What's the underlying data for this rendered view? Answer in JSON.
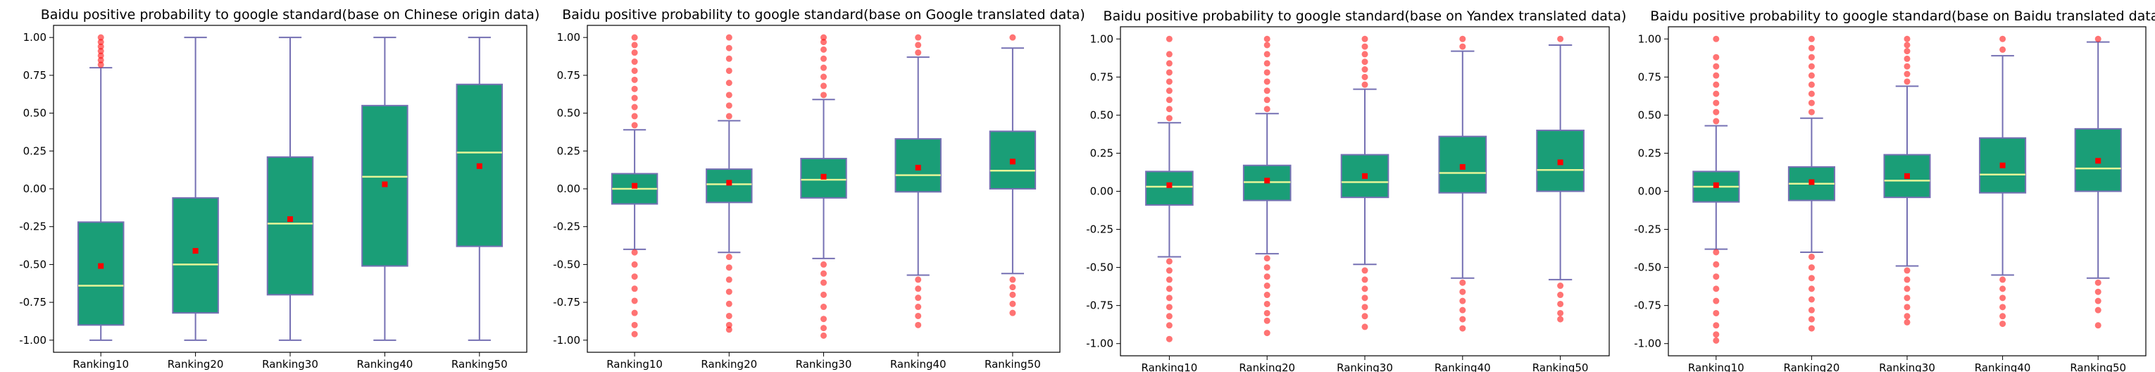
{
  "chart_data": [
    {
      "type": "box",
      "title": "Baidu positive probability to google standard(base on Chinese origin data)",
      "categories": [
        "Ranking10",
        "Ranking20",
        "Ranking30",
        "Ranking40",
        "Ranking50"
      ],
      "ylim": [
        -1.08,
        1.08
      ],
      "yticks": [
        "1.00",
        "0.75",
        "0.50",
        "0.25",
        "0.00",
        "-0.25",
        "-0.50",
        "-0.75",
        "-1.00"
      ],
      "ytick_values": [
        1.0,
        0.75,
        0.5,
        0.25,
        0.0,
        -0.25,
        -0.5,
        -0.75,
        -1.0
      ],
      "boxes": [
        {
          "whislo": -1.0,
          "q1": -0.9,
          "med": -0.64,
          "q3": -0.22,
          "whishi": 0.8,
          "mean": -0.51,
          "fliers": [
            0.82,
            0.85,
            0.88,
            0.91,
            0.94,
            0.97,
            1.0
          ]
        },
        {
          "whislo": -1.0,
          "q1": -0.82,
          "med": -0.5,
          "q3": -0.06,
          "whishi": 1.0,
          "mean": -0.41,
          "fliers": []
        },
        {
          "whislo": -1.0,
          "q1": -0.7,
          "med": -0.23,
          "q3": 0.21,
          "whishi": 1.0,
          "mean": -0.2,
          "fliers": []
        },
        {
          "whislo": -1.0,
          "q1": -0.51,
          "med": 0.08,
          "q3": 0.55,
          "whishi": 1.0,
          "mean": 0.03,
          "fliers": []
        },
        {
          "whislo": -1.0,
          "q1": -0.38,
          "med": 0.24,
          "q3": 0.69,
          "whishi": 1.0,
          "mean": 0.15,
          "fliers": []
        }
      ]
    },
    {
      "type": "box",
      "title": "Baidu positive probability to google standard(base on Google translated data)",
      "categories": [
        "Ranking10",
        "Ranking20",
        "Ranking30",
        "Ranking40",
        "Ranking50"
      ],
      "ylim": [
        -1.08,
        1.08
      ],
      "yticks": [
        "1.00",
        "0.75",
        "0.50",
        "0.25",
        "0.00",
        "-0.25",
        "-0.50",
        "-0.75",
        "-1.00"
      ],
      "ytick_values": [
        1.0,
        0.75,
        0.5,
        0.25,
        0.0,
        -0.25,
        -0.5,
        -0.75,
        -1.0
      ],
      "boxes": [
        {
          "whislo": -0.4,
          "q1": -0.1,
          "med": 0.0,
          "q3": 0.1,
          "whishi": 0.39,
          "mean": 0.02,
          "fliers": [
            0.42,
            0.48,
            0.54,
            0.6,
            0.66,
            0.72,
            0.78,
            0.84,
            0.9,
            0.95,
            1.0,
            -0.42,
            -0.5,
            -0.58,
            -0.66,
            -0.74,
            -0.82,
            -0.9,
            -0.96
          ]
        },
        {
          "whislo": -0.42,
          "q1": -0.09,
          "med": 0.03,
          "q3": 0.13,
          "whishi": 0.45,
          "mean": 0.04,
          "fliers": [
            0.48,
            0.55,
            0.62,
            0.7,
            0.78,
            0.86,
            0.93,
            1.0,
            -0.45,
            -0.52,
            -0.6,
            -0.68,
            -0.76,
            -0.84,
            -0.9,
            -0.93
          ]
        },
        {
          "whislo": -0.46,
          "q1": -0.06,
          "med": 0.06,
          "q3": 0.2,
          "whishi": 0.59,
          "mean": 0.08,
          "fliers": [
            0.62,
            0.68,
            0.74,
            0.8,
            0.86,
            0.92,
            0.97,
            1.0,
            -0.5,
            -0.56,
            -0.62,
            -0.7,
            -0.78,
            -0.86,
            -0.92,
            -0.97
          ]
        },
        {
          "whislo": -0.57,
          "q1": -0.02,
          "med": 0.09,
          "q3": 0.33,
          "whishi": 0.87,
          "mean": 0.14,
          "fliers": [
            0.9,
            0.95,
            1.0,
            -0.6,
            -0.66,
            -0.72,
            -0.78,
            -0.84,
            -0.9
          ]
        },
        {
          "whislo": -0.56,
          "q1": 0.0,
          "med": 0.12,
          "q3": 0.38,
          "whishi": 0.93,
          "mean": 0.18,
          "fliers": [
            1.0,
            -0.6,
            -0.65,
            -0.7,
            -0.76,
            -0.82
          ]
        }
      ]
    },
    {
      "type": "box",
      "title": "Baidu positive probability to google standard(base on Yandex translated data)",
      "categories": [
        "Ranking10",
        "Ranking20",
        "Ranking30",
        "Ranking40",
        "Ranking50"
      ],
      "ylim": [
        -1.08,
        1.08
      ],
      "yticks": [
        "1.00",
        "0.75",
        "0.50",
        "0.25",
        "0.00",
        "-0.25",
        "-0.50",
        "-0.75",
        "-1.00"
      ],
      "ytick_values": [
        1.0,
        0.75,
        0.5,
        0.25,
        0.0,
        -0.25,
        -0.5,
        -0.75,
        -1.0
      ],
      "boxes": [
        {
          "whislo": -0.43,
          "q1": -0.09,
          "med": 0.03,
          "q3": 0.13,
          "whishi": 0.45,
          "mean": 0.04,
          "fliers": [
            0.48,
            0.54,
            0.6,
            0.66,
            0.72,
            0.78,
            0.84,
            0.9,
            1.0,
            -0.46,
            -0.52,
            -0.58,
            -0.64,
            -0.7,
            -0.76,
            -0.82,
            -0.88,
            -0.97
          ]
        },
        {
          "whislo": -0.41,
          "q1": -0.06,
          "med": 0.06,
          "q3": 0.17,
          "whishi": 0.51,
          "mean": 0.07,
          "fliers": [
            0.54,
            0.6,
            0.66,
            0.72,
            0.78,
            0.84,
            0.9,
            0.96,
            1.0,
            -0.44,
            -0.5,
            -0.56,
            -0.62,
            -0.68,
            -0.74,
            -0.8,
            -0.85,
            -0.93
          ]
        },
        {
          "whislo": -0.48,
          "q1": -0.04,
          "med": 0.06,
          "q3": 0.24,
          "whishi": 0.67,
          "mean": 0.1,
          "fliers": [
            0.7,
            0.75,
            0.8,
            0.85,
            0.9,
            0.95,
            1.0,
            -0.52,
            -0.58,
            -0.64,
            -0.7,
            -0.76,
            -0.82,
            -0.89
          ]
        },
        {
          "whislo": -0.57,
          "q1": -0.01,
          "med": 0.12,
          "q3": 0.36,
          "whishi": 0.92,
          "mean": 0.16,
          "fliers": [
            0.95,
            1.0,
            -0.6,
            -0.66,
            -0.72,
            -0.78,
            -0.84,
            -0.9
          ]
        },
        {
          "whislo": -0.58,
          "q1": 0.0,
          "med": 0.14,
          "q3": 0.4,
          "whishi": 0.96,
          "mean": 0.19,
          "fliers": [
            1.0,
            -0.62,
            -0.68,
            -0.74,
            -0.8,
            -0.84
          ]
        }
      ]
    },
    {
      "type": "box",
      "title": "Baidu positive probability to google standard(base on Baidu translated data)",
      "categories": [
        "Ranking10",
        "Ranking20",
        "Ranking30",
        "Ranking40",
        "Ranking50"
      ],
      "ylim": [
        -1.08,
        1.08
      ],
      "yticks": [
        "1.00",
        "0.75",
        "0.50",
        "0.25",
        "0.00",
        "-0.25",
        "-0.50",
        "-0.75",
        "-1.00"
      ],
      "ytick_values": [
        1.0,
        0.75,
        0.5,
        0.25,
        0.0,
        -0.25,
        -0.5,
        -0.75,
        -1.0
      ],
      "boxes": [
        {
          "whislo": -0.38,
          "q1": -0.07,
          "med": 0.03,
          "q3": 0.13,
          "whishi": 0.43,
          "mean": 0.04,
          "fliers": [
            0.46,
            0.52,
            0.58,
            0.64,
            0.7,
            0.76,
            0.82,
            0.88,
            1.0,
            -0.4,
            -0.48,
            -0.56,
            -0.64,
            -0.72,
            -0.8,
            -0.88,
            -0.94,
            -0.98
          ]
        },
        {
          "whislo": -0.4,
          "q1": -0.06,
          "med": 0.05,
          "q3": 0.16,
          "whishi": 0.48,
          "mean": 0.06,
          "fliers": [
            0.52,
            0.58,
            0.64,
            0.7,
            0.76,
            0.82,
            0.88,
            0.94,
            1.0,
            -0.43,
            -0.5,
            -0.57,
            -0.64,
            -0.71,
            -0.78,
            -0.84,
            -0.9
          ]
        },
        {
          "whislo": -0.49,
          "q1": -0.04,
          "med": 0.07,
          "q3": 0.24,
          "whishi": 0.69,
          "mean": 0.1,
          "fliers": [
            0.72,
            0.77,
            0.82,
            0.87,
            0.92,
            0.96,
            1.0,
            -0.52,
            -0.58,
            -0.64,
            -0.7,
            -0.76,
            -0.82,
            -0.86
          ]
        },
        {
          "whislo": -0.55,
          "q1": -0.01,
          "med": 0.11,
          "q3": 0.35,
          "whishi": 0.89,
          "mean": 0.17,
          "fliers": [
            0.93,
            1.0,
            -0.58,
            -0.64,
            -0.7,
            -0.76,
            -0.82,
            -0.87
          ]
        },
        {
          "whislo": -0.57,
          "q1": 0.0,
          "med": 0.15,
          "q3": 0.41,
          "whishi": 0.98,
          "mean": 0.2,
          "fliers": [
            1.0,
            -0.6,
            -0.66,
            -0.72,
            -0.78,
            -0.88
          ]
        }
      ]
    }
  ]
}
